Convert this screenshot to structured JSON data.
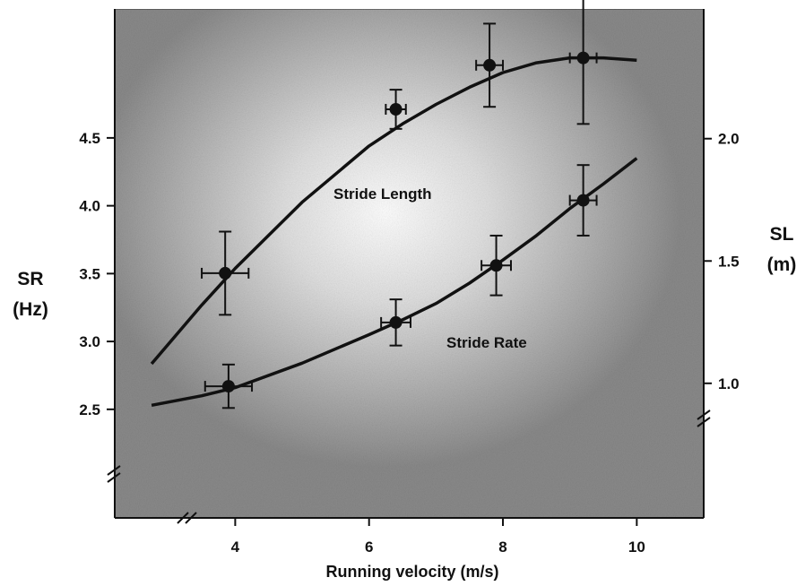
{
  "chart_data": {
    "type": "line",
    "xlabel": "Running velocity (m/s)",
    "x_ticks": [
      "4",
      "6",
      "8",
      "10"
    ],
    "xlim": [
      2.2,
      11
    ],
    "left_axis": {
      "label_line1": "SR",
      "label_line2": "(Hz)",
      "ticks": [
        "2.5",
        "3.0",
        "3.5",
        "4.0",
        "4.5"
      ],
      "ylim": [
        1.7,
        5.45
      ]
    },
    "right_axis": {
      "label_line1": "SL",
      "label_line2": "(m)",
      "ticks": [
        "1.0",
        "1.5",
        "2.0"
      ],
      "ylim": [
        0.45,
        2.53
      ]
    },
    "series": [
      {
        "name": "Stride Length",
        "axis": "right",
        "points": [
          {
            "x": 3.85,
            "y": 1.45,
            "xerr": 0.35,
            "yerr": 0.17
          },
          {
            "x": 6.4,
            "y": 2.12,
            "xerr": 0.15,
            "yerr": 0.08
          },
          {
            "x": 7.8,
            "y": 2.3,
            "xerr": 0.2,
            "yerr": 0.17
          },
          {
            "x": 9.2,
            "y": 2.33,
            "xerr": 0.2,
            "yerr": 0.27
          }
        ],
        "fit": {
          "x": [
            2.75,
            3.5,
            4.0,
            5.0,
            6.0,
            6.5,
            7.0,
            7.5,
            8.0,
            8.5,
            9.0,
            9.5,
            10.0
          ],
          "y": [
            1.08,
            1.32,
            1.47,
            1.74,
            1.97,
            2.06,
            2.14,
            2.21,
            2.27,
            2.31,
            2.33,
            2.33,
            2.32
          ]
        }
      },
      {
        "name": "Stride Rate",
        "axis": "left",
        "points": [
          {
            "x": 3.9,
            "y": 2.67,
            "xerr": 0.35,
            "yerr": 0.16
          },
          {
            "x": 6.4,
            "y": 3.14,
            "xerr": 0.22,
            "yerr": 0.17
          },
          {
            "x": 7.9,
            "y": 3.56,
            "xerr": 0.22,
            "yerr": 0.22
          },
          {
            "x": 9.2,
            "y": 4.04,
            "xerr": 0.2,
            "yerr": 0.26
          }
        ],
        "fit": {
          "x": [
            2.75,
            3.5,
            4.0,
            5.0,
            6.0,
            6.5,
            7.0,
            7.5,
            8.0,
            8.5,
            9.0,
            9.5,
            10.0
          ],
          "y": [
            2.53,
            2.6,
            2.66,
            2.84,
            3.05,
            3.16,
            3.28,
            3.43,
            3.6,
            3.78,
            3.98,
            4.16,
            4.35
          ]
        }
      }
    ],
    "colors": {
      "panel_gray": "#8c8c8c",
      "ink": "#111111"
    }
  }
}
